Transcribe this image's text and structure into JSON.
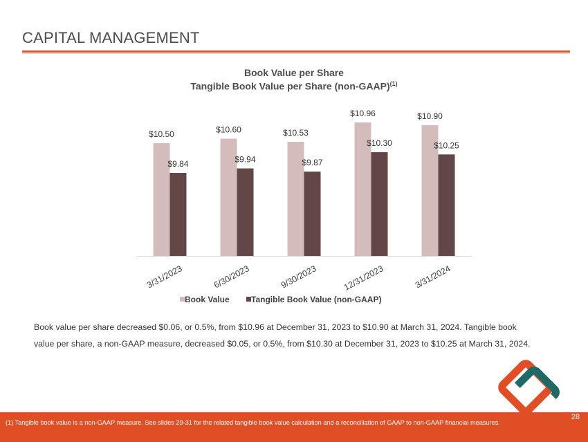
{
  "page": {
    "title": "CAPITAL MANAGEMENT",
    "body_text": "Book value per share decreased $0.06, or 0.5%, from $10.96 at December 31, 2023 to $10.90 at March 31, 2024. Tangible book value per share, a non-GAAP measure, decreased $0.05, or 0.5%, from $10.30 at December 31, 2023 to $10.25 at March 31, 2024.",
    "footnote": "(1) Tangible book value is a non-GAAP measure.  See slides 29-31 for the related tangible book value calculation and a reconciliation of GAAP to non-GAAP financial measures.",
    "page_number": "28"
  },
  "chart_data": {
    "type": "bar",
    "title": "Book Value per Share",
    "subtitle": "Tangible Book Value per Share (non-GAAP)",
    "subtitle_superscript": "(1)",
    "categories": [
      "3/31/2023",
      "6/30/2023",
      "9/30/2023",
      "12/31/2023",
      "3/31/2024"
    ],
    "series": [
      {
        "name": "Book Value",
        "values": [
          10.5,
          10.6,
          10.53,
          10.96,
          10.9
        ],
        "labels": [
          "$10.50",
          "$10.60",
          "$10.53",
          "$10.96",
          "$10.90"
        ],
        "color": "#d4bcbc"
      },
      {
        "name": "Tangible Book Value (non-GAAP)",
        "values": [
          9.84,
          9.94,
          9.87,
          10.3,
          10.25
        ],
        "labels": [
          "$9.84",
          "$9.94",
          "$9.87",
          "$10.30",
          "$10.25"
        ],
        "color": "#634646"
      }
    ],
    "legend_position": "bottom",
    "grid": false
  },
  "colors": {
    "accent": "#e2582b",
    "footer": "#e04e26",
    "logo_orange": "#e04e26",
    "logo_teal": "#1e6a66"
  }
}
